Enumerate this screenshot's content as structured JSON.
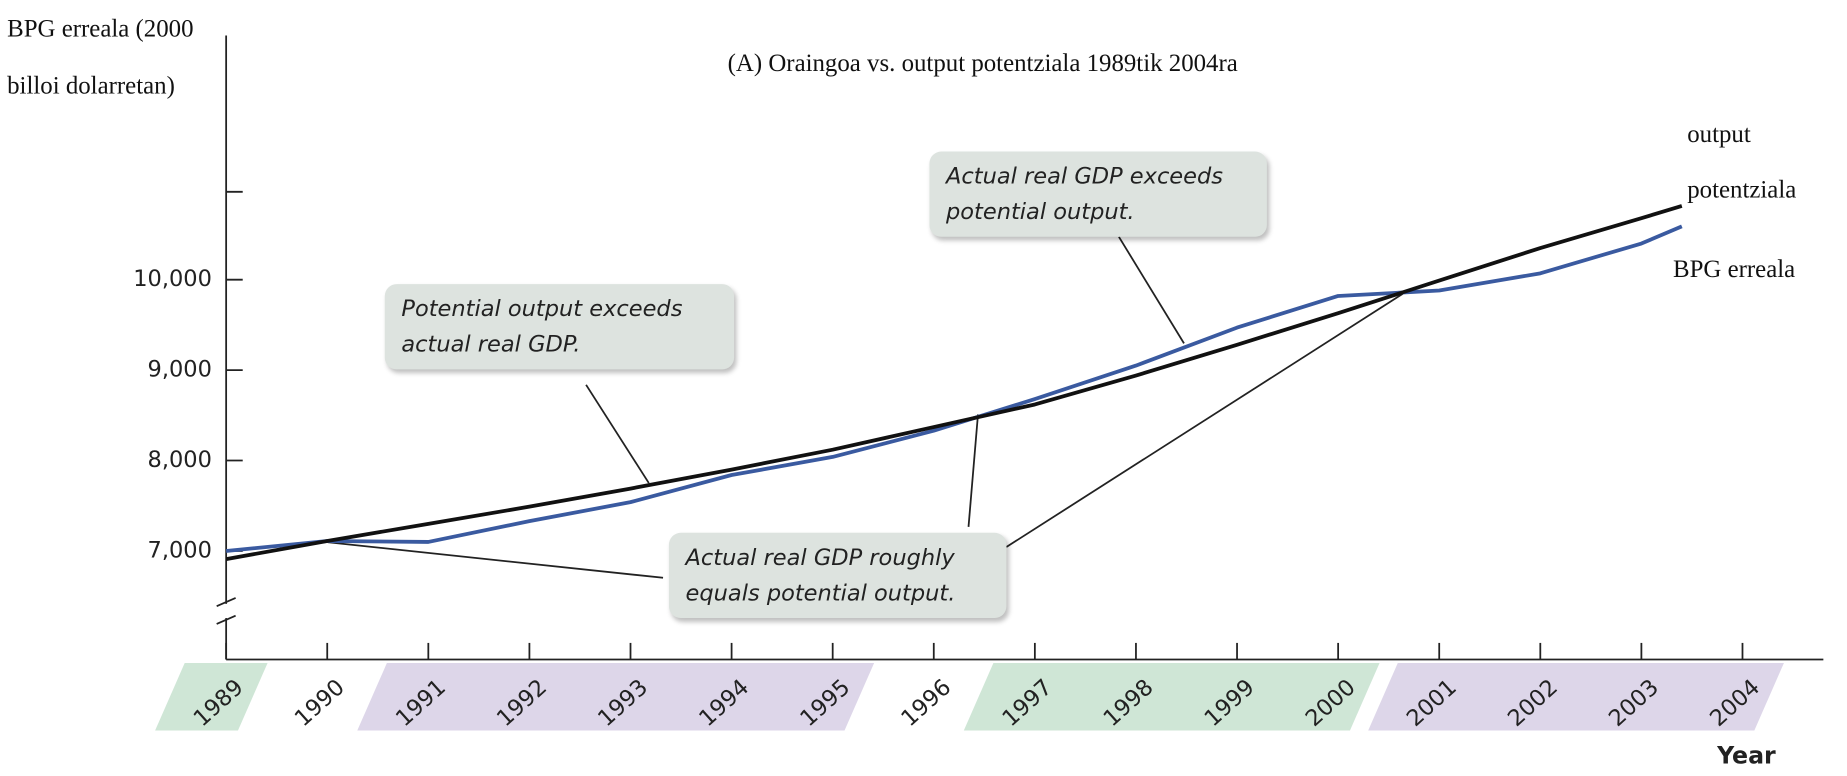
{
  "chart_data": {
    "type": "line",
    "title": "(A) Oraingoa vs. output potentziala 1989tik 2004ra",
    "y_label": "BPG erreala (2000 billoi dolarretan)",
    "x_label": "Year",
    "x": [
      1989,
      1990,
      1991,
      1992,
      1993,
      1994,
      1995,
      1996,
      1997,
      1998,
      1999,
      2000,
      2001,
      2002,
      2003,
      2003.4
    ],
    "series": [
      {
        "name": "output potentziala",
        "color": "#111111",
        "values": [
          6910,
          7110,
          7300,
          7490,
          7690,
          7900,
          8120,
          8370,
          8620,
          8940,
          9280,
          9630,
          9990,
          10350,
          10680,
          10816
        ]
      },
      {
        "name": "BPG erreala",
        "color": "#3a5aa0",
        "values": [
          7000,
          7110,
          7100,
          7330,
          7540,
          7840,
          8040,
          8330,
          8680,
          9050,
          9470,
          9820,
          9880,
          10070,
          10400,
          10590
        ]
      }
    ],
    "xlim": [
      1989,
      2004.8
    ],
    "ylim": [
      5800,
      12700
    ],
    "xticks": [
      1989,
      1990,
      1991,
      1992,
      1993,
      1994,
      1995,
      1996,
      1997,
      1998,
      1999,
      2000,
      2001,
      2002,
      2003,
      2004
    ],
    "yticks": [
      {
        "value": 7000,
        "label": "7,000"
      },
      {
        "value": 8000,
        "label": "8,000"
      },
      {
        "value": 9000,
        "label": "9,000"
      },
      {
        "value": 10000,
        "label": "10,000"
      }
    ],
    "bands": [
      {
        "start": 1989,
        "end": 1989,
        "color": "#cfe6d6"
      },
      {
        "start": 1991,
        "end": 1995,
        "color": "#ddd6e9"
      },
      {
        "start": 1997,
        "end": 2000,
        "color": "#cfe6d6"
      },
      {
        "start": 2001,
        "end": 2004,
        "color": "#ddd6e9"
      }
    ],
    "annotations": [
      {
        "text": "Potential output exceeds actual real GDP."
      },
      {
        "text": "Actual real GDP exceeds potential output."
      },
      {
        "text": "Actual real GDP roughly equals potential output."
      }
    ]
  }
}
